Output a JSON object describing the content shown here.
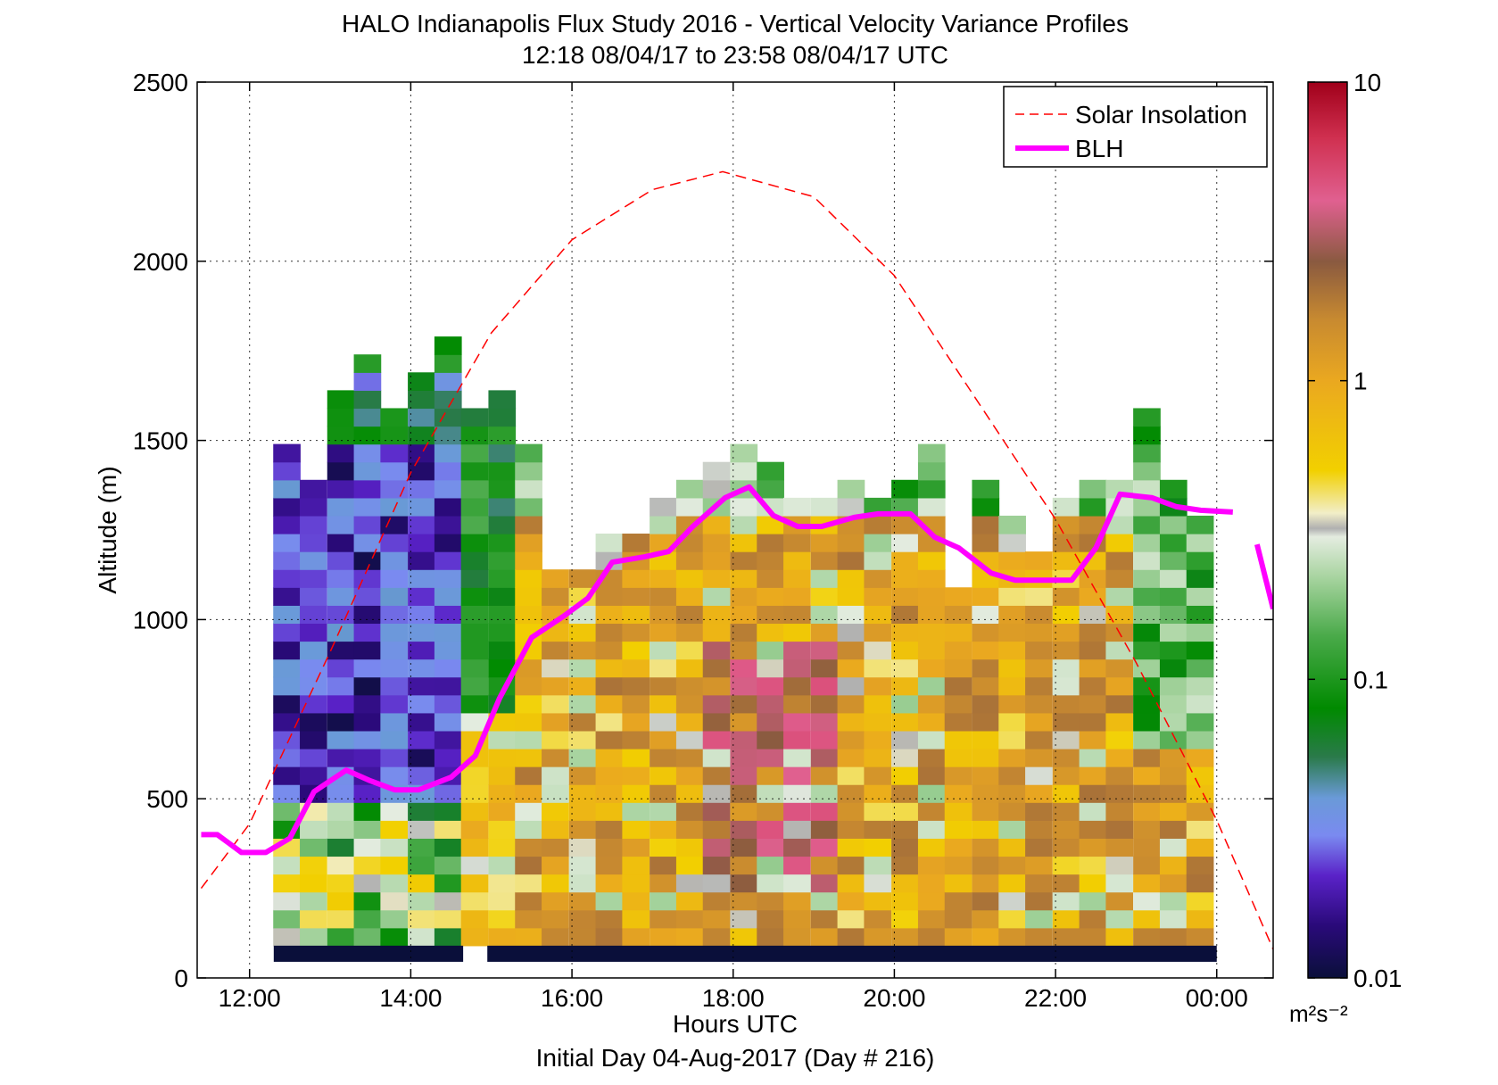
{
  "chart_data": {
    "type": "heatmap",
    "title": "HALO Indianapolis Flux Study 2016 - Vertical Velocity Variance Profiles",
    "subtitle": "12:18 08/04/17 to 23:58 08/04/17  UTC",
    "xlabel": "Hours UTC",
    "ylabel": "Altitude (m)",
    "footer": "Initial Day 04-Aug-2017 (Day # 216)",
    "x_tick_labels": [
      "12:00",
      "14:00",
      "16:00",
      "18:00",
      "20:00",
      "22:00",
      "00:00"
    ],
    "x_tick_hours": [
      12,
      14,
      16,
      18,
      20,
      22,
      24
    ],
    "xlim_hours": [
      11.35,
      24.7
    ],
    "y_ticks": [
      0,
      500,
      1000,
      1500,
      2000,
      2500
    ],
    "ylim": [
      0,
      2500
    ],
    "grid": true,
    "legend_position": "top-right",
    "legend": [
      {
        "name": "Solar Insolation",
        "style": "dashed",
        "color": "#ff0000"
      },
      {
        "name": "BLH",
        "style": "solid",
        "color": "#ff00ff"
      }
    ],
    "colorbar": {
      "scale": "log",
      "range": [
        0.01,
        10
      ],
      "tick_labels": [
        "10",
        "1",
        "0.1",
        "0.01"
      ],
      "tick_values": [
        10,
        1,
        0.1,
        0.01
      ],
      "unit_label": "m²s⁻²",
      "stops": [
        {
          "v": 0.01,
          "c": "#0a0f3a"
        },
        {
          "v": 0.015,
          "c": "#2a0a7a"
        },
        {
          "v": 0.022,
          "c": "#5a22c8"
        },
        {
          "v": 0.03,
          "c": "#7a8af0"
        },
        {
          "v": 0.04,
          "c": "#6a9ad8"
        },
        {
          "v": 0.055,
          "c": "#2a7a4a"
        },
        {
          "v": 0.08,
          "c": "#008a00"
        },
        {
          "v": 0.14,
          "c": "#4aaa4a"
        },
        {
          "v": 0.22,
          "c": "#a8d4a0"
        },
        {
          "v": 0.3,
          "c": "#e4ece0"
        },
        {
          "v": 0.32,
          "c": "#b0b0b0"
        },
        {
          "v": 0.36,
          "c": "#f2eec8"
        },
        {
          "v": 0.5,
          "c": "#f2d000"
        },
        {
          "v": 1.0,
          "c": "#eaa820"
        },
        {
          "v": 1.6,
          "c": "#c88a30"
        },
        {
          "v": 2.5,
          "c": "#8a5a40"
        },
        {
          "v": 4.0,
          "c": "#e06090"
        },
        {
          "v": 6.5,
          "c": "#d03050"
        },
        {
          "v": 10,
          "c": "#a0001a"
        }
      ]
    },
    "blh": {
      "name": "BLH",
      "hours": [
        11.4,
        11.6,
        11.9,
        12.2,
        12.5,
        12.8,
        13.2,
        13.5,
        13.8,
        14.1,
        14.5,
        14.8,
        15.1,
        15.5,
        15.9,
        16.2,
        16.5,
        16.9,
        17.2,
        17.5,
        17.9,
        18.2,
        18.5,
        18.8,
        19.1,
        19.5,
        19.8,
        20.2,
        20.5,
        20.8,
        21.2,
        21.5,
        21.8,
        22.2,
        22.5,
        22.8,
        23.2,
        23.5,
        23.8,
        24.2
      ],
      "altitude_m": [
        400,
        400,
        350,
        350,
        390,
        520,
        580,
        550,
        525,
        525,
        560,
        620,
        780,
        950,
        1010,
        1060,
        1160,
        1175,
        1190,
        1260,
        1340,
        1370,
        1290,
        1260,
        1260,
        1285,
        1295,
        1295,
        1230,
        1200,
        1130,
        1110,
        1110,
        1110,
        1200,
        1350,
        1340,
        1315,
        1305,
        1300
      ],
      "segment2_hours": [
        24.5,
        24.7
      ],
      "segment2_altitude_m": [
        1210,
        1030
      ]
    },
    "solar_insolation": {
      "name": "Solar Insolation",
      "peak_hour": 17.87,
      "peak_altitude_m": 2250,
      "hours": [
        11.4,
        12.0,
        13.0,
        14.0,
        15.0,
        16.0,
        17.0,
        17.87,
        19.0,
        20.0,
        21.0,
        22.0,
        23.0,
        24.0,
        24.7
      ],
      "altitude_m": [
        250,
        430,
        910,
        1410,
        1800,
        2060,
        2200,
        2250,
        2180,
        1960,
        1620,
        1280,
        880,
        440,
        80
      ]
    },
    "variance_grid": {
      "time_bin_hours": 0.333,
      "alt_bin_m": 50,
      "columns": [
        {
          "hour": 12.46,
          "top_m": 1480
        },
        {
          "hour": 12.79,
          "top_m": 1380
        },
        {
          "hour": 13.13,
          "top_m": 1640
        },
        {
          "hour": 13.46,
          "top_m": 1720
        },
        {
          "hour": 13.79,
          "top_m": 1590
        },
        {
          "hour": 14.13,
          "top_m": 1680
        },
        {
          "hour": 14.46,
          "top_m": 1770
        },
        {
          "hour": 14.79,
          "top_m": 1580
        },
        {
          "hour": 15.13,
          "top_m": 1640
        },
        {
          "hour": 15.46,
          "top_m": 1450
        },
        {
          "hour": 15.79,
          "top_m": 1100
        },
        {
          "hour": 16.13,
          "top_m": 1100
        },
        {
          "hour": 16.46,
          "top_m": 1240
        },
        {
          "hour": 16.79,
          "top_m": 1220
        },
        {
          "hour": 17.13,
          "top_m": 1340
        },
        {
          "hour": 17.46,
          "top_m": 1390
        },
        {
          "hour": 17.79,
          "top_m": 1440
        },
        {
          "hour": 18.13,
          "top_m": 1490
        },
        {
          "hour": 18.46,
          "top_m": 1440
        },
        {
          "hour": 18.79,
          "top_m": 1300
        },
        {
          "hour": 19.13,
          "top_m": 1340
        },
        {
          "hour": 19.46,
          "top_m": 1390
        },
        {
          "hour": 19.79,
          "top_m": 1340
        },
        {
          "hour": 20.13,
          "top_m": 1390
        },
        {
          "hour": 20.46,
          "top_m": 1490
        },
        {
          "hour": 20.79,
          "top_m": 1050
        },
        {
          "hour": 21.13,
          "top_m": 1350
        },
        {
          "hour": 21.46,
          "top_m": 1250
        },
        {
          "hour": 21.79,
          "top_m": 1150
        },
        {
          "hour": 22.13,
          "top_m": 1340
        },
        {
          "hour": 22.46,
          "top_m": 1390
        },
        {
          "hour": 22.79,
          "top_m": 1390
        },
        {
          "hour": 23.13,
          "top_m": 1580
        },
        {
          "hour": 23.46,
          "top_m": 1390
        },
        {
          "hour": 23.79,
          "top_m": 1290
        }
      ],
      "low_variance_bar": {
        "alt_m": [
          45,
          90
        ],
        "segments_hours": [
          [
            12.3,
            14.65
          ],
          [
            14.95,
            24.0
          ]
        ]
      }
    }
  }
}
